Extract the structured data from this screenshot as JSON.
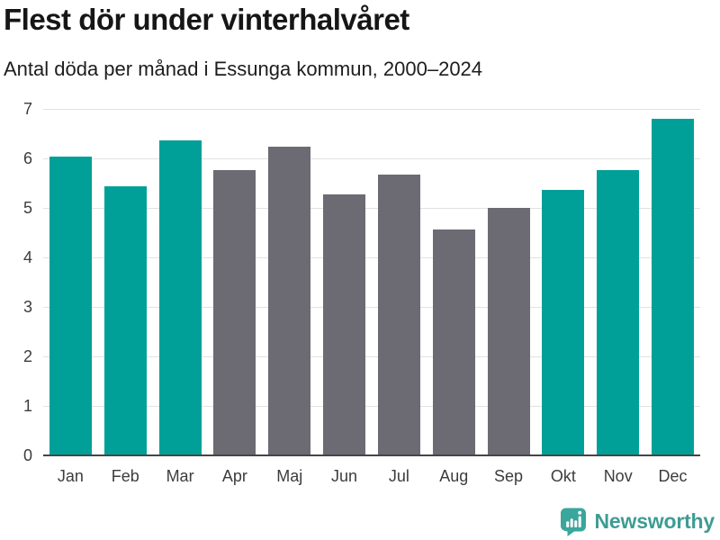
{
  "header": {
    "title": "Flest dör under vinterhalvåret",
    "subtitle": "Antal döda per månad i Essunga kommun, 2000–2024"
  },
  "chart_data": {
    "type": "bar",
    "title": "Flest dör under vinterhalvåret",
    "subtitle": "Antal döda per månad i Essunga kommun, 2000–2024",
    "categories": [
      "Jan",
      "Feb",
      "Mar",
      "Apr",
      "Maj",
      "Jun",
      "Jul",
      "Aug",
      "Sep",
      "Okt",
      "Nov",
      "Dec"
    ],
    "values": [
      6.04,
      5.44,
      6.36,
      5.76,
      6.24,
      5.28,
      5.68,
      4.56,
      5.0,
      5.36,
      5.76,
      6.8
    ],
    "highlighted": [
      true,
      true,
      true,
      false,
      false,
      false,
      false,
      false,
      false,
      true,
      true,
      true
    ],
    "highlight_color": "#00a098",
    "muted_color": "#6c6a72",
    "xlabel": "",
    "ylabel": "",
    "ylim": [
      0,
      7
    ],
    "yticks": [
      0,
      1,
      2,
      3,
      4,
      5,
      6,
      7
    ],
    "grid": true,
    "legend": false
  },
  "colors": {
    "grid": "#e2e2e2",
    "axis": "#454545",
    "tick_text": "#3c3c3c",
    "brand": "#3f9c94",
    "brand_icon": "#3aa69c"
  },
  "footer": {
    "brand": "Newsworthy",
    "logo_icon": "bar-chart-speech-bubble"
  }
}
